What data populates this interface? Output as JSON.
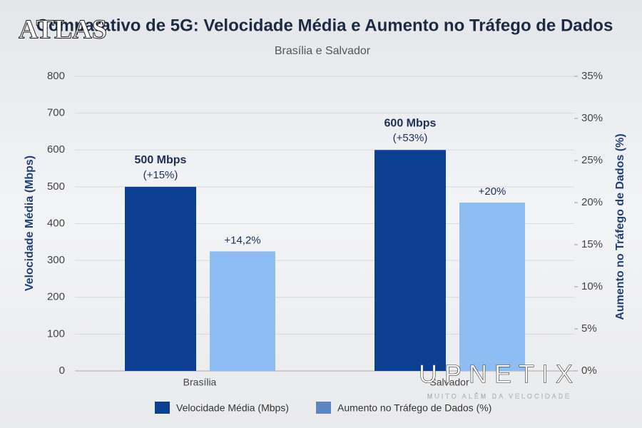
{
  "chart_data": {
    "type": "bar",
    "title": "Comparativo de 5G: Velocidade Média e Aumento no Tráfego de Dados",
    "subtitle": "Brasília e Salvador",
    "y_label": "Velocidade Média (Mbps)",
    "y2_label": "Aumento no Tráfego de Dados (%)",
    "categories": [
      "Brasília",
      "Salvador"
    ],
    "series": [
      {
        "name": "Velocidade Média (Mbps)",
        "color": "#0b3f94",
        "values": [
          500,
          600
        ],
        "value_labels": [
          "500 Mbps",
          "600 Mbps"
        ],
        "value_notes": [
          "(+15%)",
          "(+53%)"
        ]
      },
      {
        "name": "Aumento no Tráfego de  Dados (%)",
        "color": "#8dbdf2",
        "legend_color": "#5b86c2",
        "axis": "y2",
        "values": [
          14.2,
          20
        ],
        "value_labels": [
          "+14,2%",
          "+20%"
        ]
      }
    ],
    "ylim": [
      0,
      800
    ],
    "yticks": [
      0,
      100,
      200,
      300,
      400,
      500,
      600,
      700,
      800
    ],
    "y2lim": [
      0,
      35
    ],
    "y2ticks": [
      {
        "value": 0,
        "label": "0%"
      },
      {
        "value": 5,
        "label": "5%"
      },
      {
        "value": 10,
        "label": "10%"
      },
      {
        "value": 15,
        "label": "15%"
      },
      {
        "value": 20,
        "label": "20%"
      },
      {
        "value": 25,
        "label": "25%"
      },
      {
        "value": 30,
        "label": "30%"
      },
      {
        "value": 35,
        "label": "35%"
      }
    ],
    "grid": true,
    "legend": "bottom"
  },
  "logos": {
    "top_left": "ATLAS",
    "bottom_right": "UPNETIX",
    "tagline": "MUITO ALÉM DA VELOCIDADE"
  }
}
